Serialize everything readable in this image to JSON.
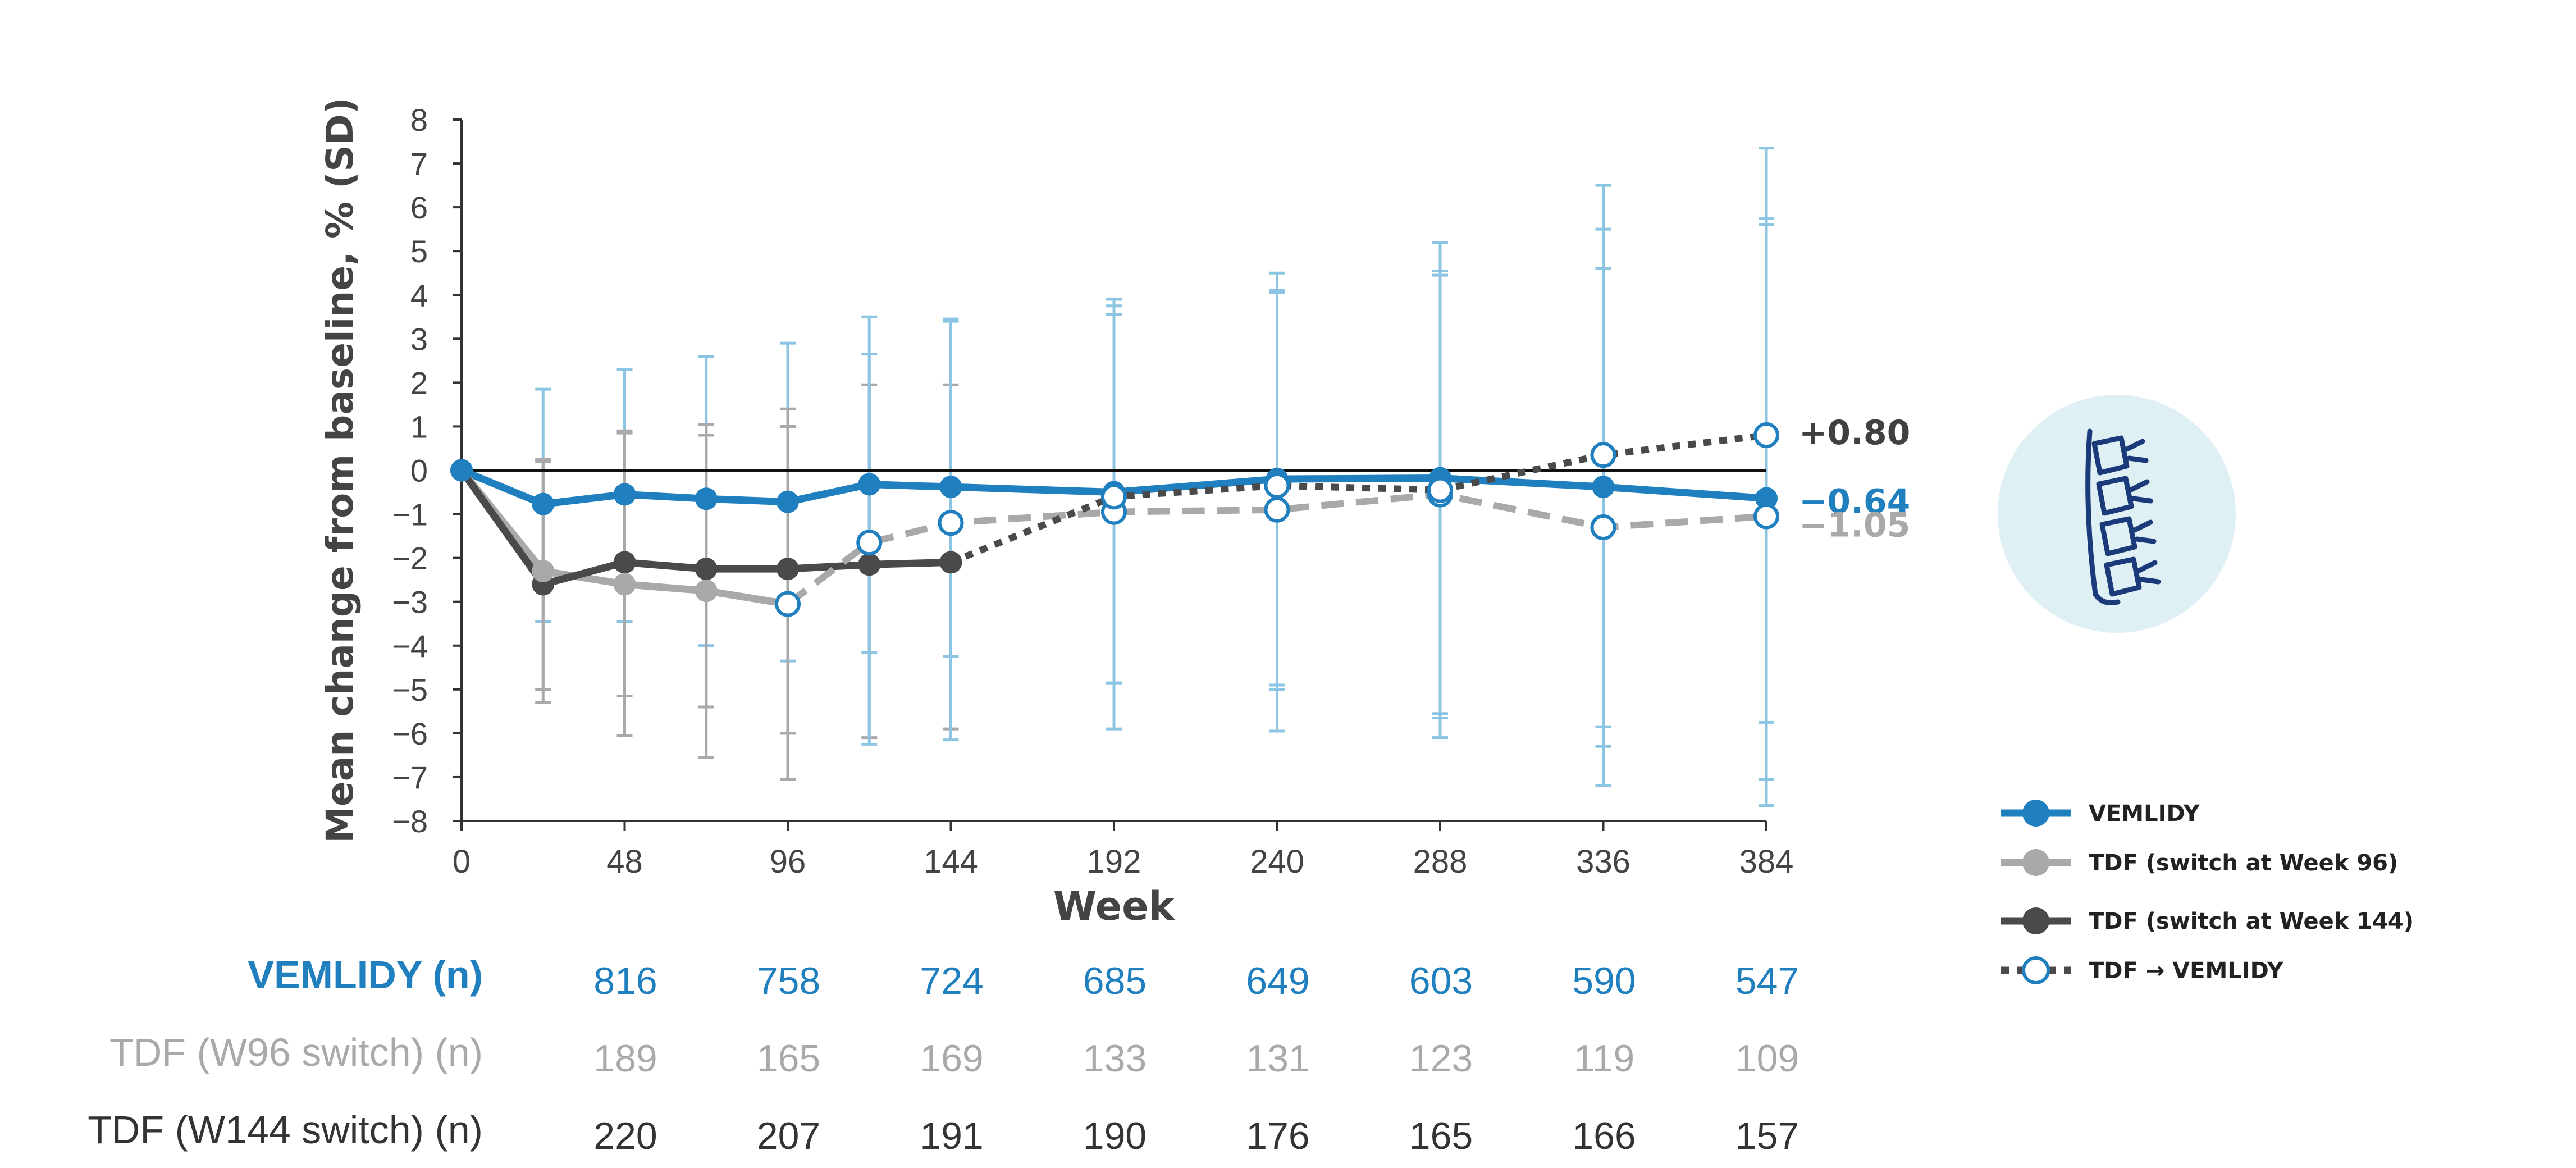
{
  "chart_data": {
    "type": "line",
    "title": "",
    "xlabel": "Week",
    "ylabel": "Mean change from baseline, % (SD)",
    "xlim": [
      0,
      384
    ],
    "ylim": [
      -8,
      8
    ],
    "x_ticks": [
      "0",
      "48",
      "96",
      "144",
      "192",
      "240",
      "288",
      "336",
      "384"
    ],
    "y_ticks": [
      "8",
      "7",
      "6",
      "5",
      "4",
      "3",
      "2",
      "1",
      "0",
      "−1",
      "−2",
      "−3",
      "−4",
      "−5",
      "−6",
      "−7",
      "−8"
    ],
    "grid": false,
    "legend_position": "right",
    "series": [
      {
        "name": "VEMLIDY",
        "color": "#1f7fbf",
        "marker": "filled-circle",
        "line": "solid",
        "points": [
          {
            "x": 0,
            "y": 0
          },
          {
            "x": 24,
            "y": -0.77,
            "err_hi": 1.85,
            "err_lo": -3.45
          },
          {
            "x": 48,
            "y": -0.55,
            "err_hi": 2.3,
            "err_lo": -3.45
          },
          {
            "x": 72,
            "y": -0.65,
            "err_hi": 2.6,
            "err_lo": -4.0
          },
          {
            "x": 96,
            "y": -0.72,
            "err_hi": 2.9,
            "err_lo": -4.35
          },
          {
            "x": 120,
            "y": -0.32,
            "err_hi": 3.5,
            "err_lo": -4.15
          },
          {
            "x": 144,
            "y": -0.38,
            "err_hi": 3.45,
            "err_lo": -4.25
          },
          {
            "x": 192,
            "y": -0.5,
            "err_hi": 3.9,
            "err_lo": -4.85
          },
          {
            "x": 240,
            "y": -0.2,
            "err_hi": 4.5,
            "err_lo": -4.9
          },
          {
            "x": 288,
            "y": -0.18,
            "err_hi": 5.2,
            "err_lo": -5.55
          },
          {
            "x": 336,
            "y": -0.38,
            "err_hi": 5.5,
            "err_lo": -6.3
          },
          {
            "x": 384,
            "y": -0.64,
            "err_hi": 5.75,
            "err_lo": -7.05
          }
        ]
      },
      {
        "name": "TDF (switch at Week 96)",
        "color": "#a9a9a9",
        "marker": "filled-circle",
        "line": "solid",
        "points": [
          {
            "x": 0,
            "y": 0
          },
          {
            "x": 24,
            "y": -2.3,
            "err_hi": 0.2,
            "err_lo": -5.3
          },
          {
            "x": 48,
            "y": -2.6,
            "err_hi": 0.85,
            "err_lo": -6.05
          },
          {
            "x": 72,
            "y": -2.75,
            "err_hi": 1.05,
            "err_lo": -6.55
          },
          {
            "x": 96,
            "y": -3.05,
            "err_hi": 1.0,
            "err_lo": -7.05
          }
        ]
      },
      {
        "name": "TDF (switch at Week 144)",
        "color": "#4a4a4a",
        "marker": "filled-circle",
        "line": "solid",
        "points": [
          {
            "x": 0,
            "y": 0
          },
          {
            "x": 24,
            "y": -2.6,
            "err_hi": 0.25,
            "err_lo": -5.0
          },
          {
            "x": 48,
            "y": -2.1,
            "err_hi": 0.9,
            "err_lo": -5.15
          },
          {
            "x": 72,
            "y": -2.25,
            "err_hi": 0.8,
            "err_lo": -5.4
          },
          {
            "x": 96,
            "y": -2.25,
            "err_hi": 1.4,
            "err_lo": -6.0
          },
          {
            "x": 120,
            "y": -2.15,
            "err_hi": 1.95,
            "err_lo": -6.1
          },
          {
            "x": 144,
            "y": -2.1,
            "err_hi": 1.95,
            "err_lo": -5.9
          }
        ]
      },
      {
        "name": "TDF → VEMLIDY (switch at Week 96)",
        "color": "#a9a9a9",
        "marker": "open-circle",
        "line": "dashed",
        "points": [
          {
            "x": 96,
            "y": -3.05
          },
          {
            "x": 120,
            "y": -1.65,
            "err_hi": 2.65,
            "err_lo": -6.25
          },
          {
            "x": 144,
            "y": -1.2,
            "err_hi": 3.4,
            "err_lo": -6.15
          },
          {
            "x": 192,
            "y": -0.95,
            "err_hi": 3.75,
            "err_lo": -5.9
          },
          {
            "x": 240,
            "y": -0.9,
            "err_hi": 4.1,
            "err_lo": -5.95
          },
          {
            "x": 288,
            "y": -0.55,
            "err_hi": 4.45,
            "err_lo": -6.1
          },
          {
            "x": 336,
            "y": -1.3,
            "err_hi": 4.6,
            "err_lo": -7.2
          },
          {
            "x": 384,
            "y": -1.05,
            "err_hi": 5.6,
            "err_lo": -7.65
          }
        ]
      },
      {
        "name": "TDF → VEMLIDY (switch at Week 144)",
        "color": "#4a4a4a",
        "marker": "open-circle",
        "line": "dotted",
        "points": [
          {
            "x": 144,
            "y": -2.1
          },
          {
            "x": 192,
            "y": -0.6,
            "err_hi": 3.55,
            "err_lo": -4.85
          },
          {
            "x": 240,
            "y": -0.35,
            "err_hi": 4.05,
            "err_lo": -5.0
          },
          {
            "x": 288,
            "y": -0.45,
            "err_hi": 4.55,
            "err_lo": -5.65
          },
          {
            "x": 336,
            "y": 0.35,
            "err_hi": 6.5,
            "err_lo": -5.85
          },
          {
            "x": 384,
            "y": 0.8,
            "err_hi": 7.35,
            "err_lo": -5.75
          }
        ]
      }
    ],
    "end_labels": [
      {
        "text": "+0.80",
        "color": "#404040"
      },
      {
        "text": "−0.64",
        "color": "#1f7fbf"
      },
      {
        "text": "−1.05",
        "color": "#a9a9a9"
      }
    ],
    "legend": [
      {
        "label": "VEMLIDY",
        "color": "#1f7fbf",
        "style": "solid-filled"
      },
      {
        "label": "TDF (switch at Week 96)",
        "color": "#a9a9a9",
        "style": "solid-filled"
      },
      {
        "label": "TDF (switch at Week 144)",
        "color": "#4a4a4a",
        "style": "solid-filled"
      },
      {
        "label": "TDF → VEMLIDY",
        "color": "#4a4a4a",
        "style": "dotted-open"
      }
    ],
    "n_table": {
      "columns": [
        "48",
        "96",
        "144",
        "192",
        "240",
        "288",
        "336",
        "384"
      ],
      "rows": [
        {
          "label": "VEMLIDY (n)",
          "color": "#1f7fbf",
          "bold": true,
          "values": [
            "816",
            "758",
            "724",
            "685",
            "649",
            "603",
            "590",
            "547"
          ]
        },
        {
          "label": "TDF (W96 switch) (n)",
          "color": "#a9a9a9",
          "bold": false,
          "values": [
            "189",
            "165",
            "169",
            "133",
            "131",
            "123",
            "119",
            "109"
          ]
        },
        {
          "label": "TDF (W144 switch) (n)",
          "color": "#333333",
          "bold": false,
          "values": [
            "220",
            "207",
            "191",
            "190",
            "176",
            "165",
            "166",
            "157"
          ]
        }
      ]
    },
    "icon": {
      "name": "spine-icon",
      "bg": "#dff0f5",
      "color": "#1b3a7a"
    }
  }
}
